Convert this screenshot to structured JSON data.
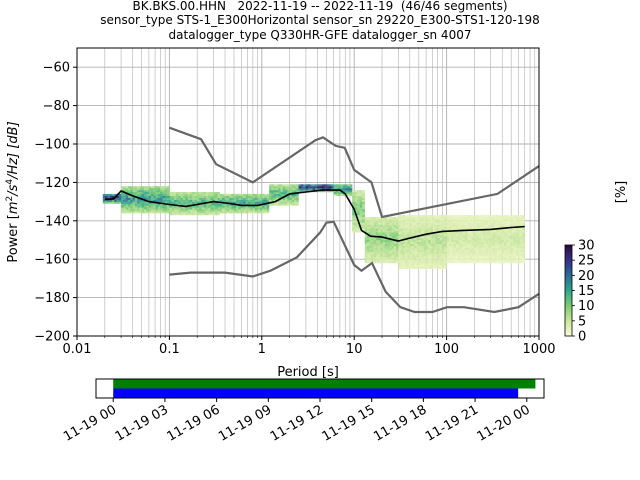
{
  "title_lines": [
    "BK.BKS.00.HHN   2022-11-19 -- 2022-11-19  (46/46 segments)",
    "sensor_type STS-1_E300Horizontal sensor_sn 29220_E300-STS1-120-198",
    "datalogger_type Q330HR-GFE datalogger_sn 4007"
  ],
  "chart_data": [
    {
      "type": "heatmap",
      "xlabel": "Period [s]",
      "ylabel": "Power [m²/s⁴/Hz] [dB]",
      "ylabel_parts": {
        "prefix": "Power [",
        "m": "m",
        "sup2": "2",
        "s": "/s",
        "sup4": "4",
        "hz": "/Hz] [dB]"
      },
      "x_scale": "log",
      "xlim": [
        0.01,
        1000
      ],
      "ylim": [
        -200,
        -50
      ],
      "x_ticks": [
        0.01,
        0.1,
        1,
        10,
        100,
        1000
      ],
      "x_tick_labels": [
        "0.01",
        "0.1",
        "1",
        "10",
        "100",
        "1000"
      ],
      "y_ticks": [
        -200,
        -180,
        -160,
        -140,
        -120,
        -100,
        -80,
        -60
      ],
      "y_tick_labels": [
        "−200",
        "−180",
        "−160",
        "−140",
        "−120",
        "−100",
        "−80",
        "−60"
      ],
      "grid": true,
      "colorbar": {
        "label": "[%]",
        "range": [
          0,
          30
        ],
        "ticks": [
          0,
          5,
          10,
          15,
          20,
          25,
          30
        ],
        "tick_labels": [
          "0",
          "5",
          "10",
          "15",
          "20",
          "25",
          "30"
        ],
        "colors": [
          "#fafad2",
          "#c8e69c",
          "#7ccb72",
          "#2ea88a",
          "#2a6f97",
          "#35308a",
          "#2b0a3d"
        ]
      },
      "series": [
        {
          "name": "",
          "role": "noise-model-high",
          "color": "#666666",
          "points": [
            [
              0.1,
              -91.5
            ],
            [
              0.22,
              -97.5
            ],
            [
              0.32,
              -110.5
            ],
            [
              0.8,
              -120
            ],
            [
              3.8,
              -98
            ],
            [
              4.6,
              -96.5
            ],
            [
              6.3,
              -101
            ],
            [
              7.9,
              -102
            ],
            [
              10,
              -113.5
            ],
            [
              15.4,
              -120
            ],
            [
              20,
              -138
            ],
            [
              354.8,
              -126
            ],
            [
              1000,
              -111.5
            ]
          ]
        },
        {
          "name": "",
          "role": "noise-model-low",
          "color": "#666666",
          "points": [
            [
              0.1,
              -168
            ],
            [
              0.17,
              -167
            ],
            [
              0.4,
              -167
            ],
            [
              0.8,
              -169
            ],
            [
              1.24,
              -166
            ],
            [
              2.4,
              -159
            ],
            [
              4.3,
              -146
            ],
            [
              5,
              -141
            ],
            [
              6,
              -140.5
            ],
            [
              10,
              -163
            ],
            [
              12,
              -166
            ],
            [
              15.6,
              -162
            ],
            [
              21.9,
              -177
            ],
            [
              31.6,
              -185
            ],
            [
              45,
              -187.5
            ],
            [
              70,
              -187.5
            ],
            [
              101,
              -185
            ],
            [
              154,
              -185
            ],
            [
              328,
              -187.5
            ],
            [
              600,
              -185
            ],
            [
              1000,
              -178
            ]
          ]
        },
        {
          "name": "",
          "role": "mode",
          "color": "#000000",
          "points": [
            [
              0.02,
              -129
            ],
            [
              0.025,
              -128.5
            ],
            [
              0.03,
              -124.5
            ],
            [
              0.04,
              -127
            ],
            [
              0.06,
              -130
            ],
            [
              0.1,
              -131.5
            ],
            [
              0.15,
              -132.5
            ],
            [
              0.2,
              -131.5
            ],
            [
              0.3,
              -130
            ],
            [
              0.45,
              -131
            ],
            [
              0.6,
              -132
            ],
            [
              0.9,
              -132
            ],
            [
              1.4,
              -130
            ],
            [
              2,
              -126
            ],
            [
              3,
              -125
            ],
            [
              4.5,
              -124
            ],
            [
              6,
              -124
            ],
            [
              7,
              -124
            ],
            [
              8,
              -126
            ],
            [
              10,
              -134
            ],
            [
              12,
              -145
            ],
            [
              15,
              -148
            ],
            [
              20,
              -148.5
            ],
            [
              30,
              -150.5
            ],
            [
              40,
              -149
            ],
            [
              60,
              -147
            ],
            [
              90,
              -145.5
            ],
            [
              150,
              -145
            ],
            [
              300,
              -144.5
            ],
            [
              500,
              -143.5
            ],
            [
              700,
              -143
            ]
          ]
        }
      ],
      "density_bands": [
        {
          "period_range": [
            0.019,
            0.03
          ],
          "db_range": [
            -131,
            -126
          ],
          "level": 0.95
        },
        {
          "period_range": [
            0.03,
            0.1
          ],
          "db_range": [
            -136,
            -122
          ],
          "level": 0.55
        },
        {
          "period_range": [
            0.1,
            0.35
          ],
          "db_range": [
            -137,
            -125
          ],
          "level": 0.45
        },
        {
          "period_range": [
            0.35,
            1.2
          ],
          "db_range": [
            -136,
            -126
          ],
          "level": 0.5
        },
        {
          "period_range": [
            1.2,
            2.5
          ],
          "db_range": [
            -132,
            -121
          ],
          "level": 0.45
        },
        {
          "period_range": [
            2.5,
            6
          ],
          "db_range": [
            -125,
            -121
          ],
          "level": 0.95
        },
        {
          "period_range": [
            6,
            9.5
          ],
          "db_range": [
            -127,
            -121
          ],
          "level": 0.6
        },
        {
          "period_range": [
            9.5,
            13
          ],
          "db_range": [
            -146,
            -124
          ],
          "level": 0.35
        },
        {
          "period_range": [
            13,
            30
          ],
          "db_range": [
            -162,
            -138
          ],
          "level": 0.3
        },
        {
          "period_range": [
            30,
            100
          ],
          "db_range": [
            -165,
            -137
          ],
          "level": 0.2
        },
        {
          "period_range": [
            100,
            700
          ],
          "db_range": [
            -162,
            -137
          ],
          "level": 0.15
        }
      ]
    },
    {
      "type": "timeline",
      "x_tick_labels": [
        "11-19 00",
        "11-19 03",
        "11-19 06",
        "11-19 09",
        "11-19 12",
        "11-19 15",
        "11-19 18",
        "11-19 21",
        "11-20 00"
      ],
      "xlim_hours": [
        -1,
        25
      ],
      "bars": [
        {
          "name": "",
          "color": "#008000",
          "start_hour": 0,
          "end_hour": 24.5
        },
        {
          "name": "",
          "color": "#0000ff",
          "start_hour": 0,
          "end_hour": 23.5
        }
      ]
    }
  ]
}
